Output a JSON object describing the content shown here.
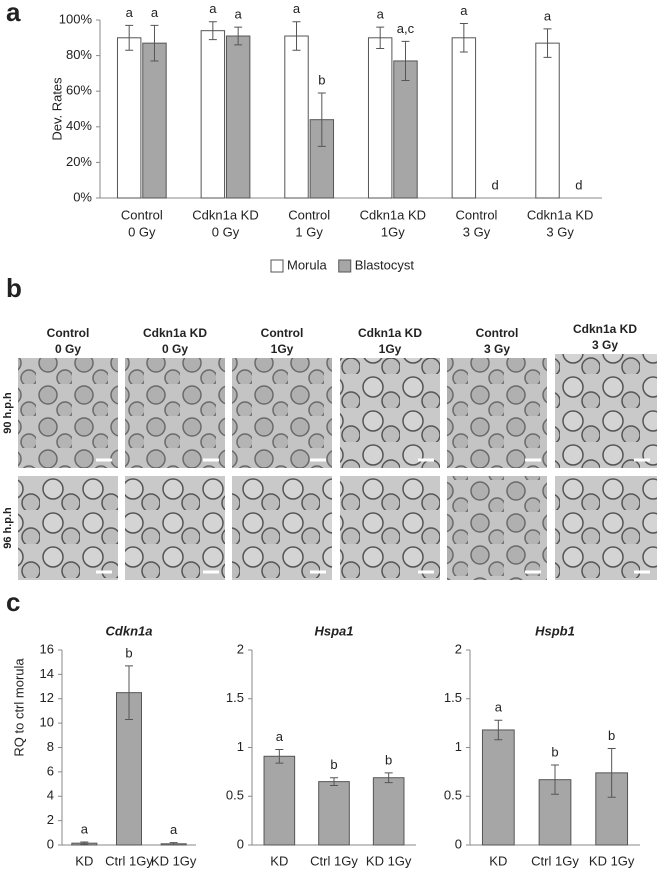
{
  "panel_labels": [
    "a",
    "b",
    "c"
  ],
  "chart_data": [
    {
      "type": "bar",
      "ylabel": "Dev. Rates",
      "categories": [
        [
          "Control",
          "0 Gy"
        ],
        [
          "Cdkn1a KD",
          "0 Gy"
        ],
        [
          "Control",
          "1 Gy"
        ],
        [
          "Cdkn1a KD",
          "1Gy"
        ],
        [
          "Control",
          "3 Gy"
        ],
        [
          "Cdkn1a KD",
          "3 Gy"
        ]
      ],
      "series": [
        {
          "name": "Morula",
          "color": "#ffffff",
          "values": [
            90,
            94,
            91,
            90,
            90,
            87
          ],
          "errors": [
            7,
            5,
            8,
            6,
            8,
            8
          ],
          "letters": [
            "a",
            "a",
            "a",
            "a",
            "a",
            "a"
          ]
        },
        {
          "name": "Blastocyst",
          "color": "#a6a6a6",
          "values": [
            87,
            91,
            44,
            77,
            0,
            0
          ],
          "errors": [
            10,
            5,
            15,
            11,
            null,
            null
          ],
          "letters": [
            "a",
            "a",
            "b",
            "a,c",
            "d",
            "d"
          ]
        }
      ],
      "ylim": [
        0,
        100
      ],
      "yticks": [
        {
          "value": 0,
          "label": "0%"
        },
        {
          "value": 20,
          "label": "20%"
        },
        {
          "value": 40,
          "label": "40%"
        },
        {
          "value": 60,
          "label": "60%"
        },
        {
          "value": 80,
          "label": "80%"
        },
        {
          "value": 100,
          "label": "100%"
        }
      ],
      "legend": "bottom",
      "grid": false
    },
    {
      "type": "bar",
      "title": "Cdkn1a",
      "ylabel": "RQ to ctrl morula",
      "categories": [
        "KD",
        "Ctrl 1Gy",
        "KD 1Gy"
      ],
      "series": [
        {
          "color": "#a6a6a6",
          "values": [
            0.15,
            12.5,
            0.1
          ],
          "errors": [
            0.1,
            2.2,
            0.1
          ],
          "letters": [
            "a",
            "b",
            "a"
          ]
        }
      ],
      "ylim": [
        0,
        16
      ],
      "yticks": [
        0,
        2,
        4,
        6,
        8,
        10,
        12,
        14,
        16
      ],
      "grid": false
    },
    {
      "type": "bar",
      "title": "Hspa1",
      "categories": [
        "KD",
        "Ctrl 1Gy",
        "KD 1Gy"
      ],
      "series": [
        {
          "color": "#a6a6a6",
          "values": [
            0.91,
            0.65,
            0.69
          ],
          "errors": [
            0.07,
            0.04,
            0.05
          ],
          "letters": [
            "a",
            "b",
            "b"
          ]
        }
      ],
      "ylim": [
        0,
        2
      ],
      "yticks": [
        0,
        0.5,
        1,
        1.5,
        2
      ],
      "grid": false
    },
    {
      "type": "bar",
      "title": "Hspb1",
      "categories": [
        "KD",
        "Ctrl 1Gy",
        "KD 1Gy"
      ],
      "series": [
        {
          "color": "#a6a6a6",
          "values": [
            1.18,
            0.67,
            0.74
          ],
          "errors": [
            0.1,
            0.15,
            0.25
          ],
          "letters": [
            "a",
            "b",
            "b"
          ]
        }
      ],
      "ylim": [
        0,
        2
      ],
      "yticks": [
        0,
        0.5,
        1,
        1.5,
        2
      ],
      "grid": false
    }
  ],
  "image_panel": {
    "columns": [
      [
        "Control",
        "0 Gy"
      ],
      [
        "Cdkn1a KD",
        "0 Gy"
      ],
      [
        "Control",
        "1Gy"
      ],
      [
        "Cdkn1a KD",
        "1Gy"
      ],
      [
        "Control",
        "3 Gy"
      ],
      [
        "Cdkn1a KD",
        "3 Gy"
      ]
    ],
    "rows": [
      "90 h.p.h",
      "96 h.p.h"
    ]
  }
}
